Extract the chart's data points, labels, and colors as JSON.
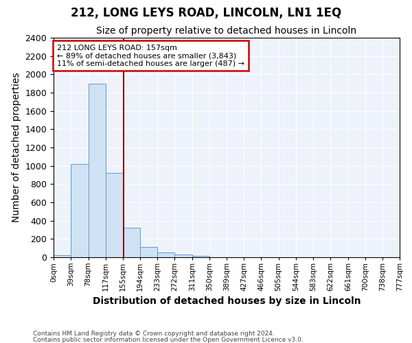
{
  "title": "212, LONG LEYS ROAD, LINCOLN, LN1 1EQ",
  "subtitle": "Size of property relative to detached houses in Lincoln",
  "xlabel": "Distribution of detached houses by size in Lincoln",
  "ylabel": "Number of detached properties",
  "footnote1": "Contains HM Land Registry data © Crown copyright and database right 2024.",
  "footnote2": "Contains public sector information licensed under the Open Government Licence v3.0.",
  "bin_edges": [
    0,
    39,
    78,
    117,
    155,
    194,
    233,
    272,
    311,
    350,
    389,
    427,
    466,
    505,
    544,
    583,
    622,
    661,
    700,
    738,
    777
  ],
  "bin_labels": [
    "0sqm",
    "39sqm",
    "78sqm",
    "117sqm",
    "155sqm",
    "194sqm",
    "233sqm",
    "272sqm",
    "311sqm",
    "350sqm",
    "389sqm",
    "427sqm",
    "466sqm",
    "505sqm",
    "544sqm",
    "583sqm",
    "622sqm",
    "661sqm",
    "700sqm",
    "738sqm",
    "777sqm"
  ],
  "values": [
    20,
    1020,
    1900,
    920,
    320,
    110,
    50,
    30,
    15,
    0,
    0,
    0,
    0,
    0,
    0,
    0,
    0,
    0,
    0,
    0
  ],
  "bar_color": "#cfe2f3",
  "bar_edge_color": "#5b9bd5",
  "property_line_value": 157,
  "property_line_color": "#8b0000",
  "ylim": [
    0,
    2400
  ],
  "yticks": [
    0,
    200,
    400,
    600,
    800,
    1000,
    1200,
    1400,
    1600,
    1800,
    2000,
    2200,
    2400
  ],
  "annotation_line1": "212 LONG LEYS ROAD: 157sqm",
  "annotation_line2": "← 89% of detached houses are smaller (3,843)",
  "annotation_line3": "11% of semi-detached houses are larger (487) →",
  "annotation_box_color": "#ffffff",
  "annotation_box_edge": "#cc0000",
  "title_fontsize": 12,
  "subtitle_fontsize": 10,
  "axis_label_fontsize": 10,
  "background_color": "#eef2fa"
}
